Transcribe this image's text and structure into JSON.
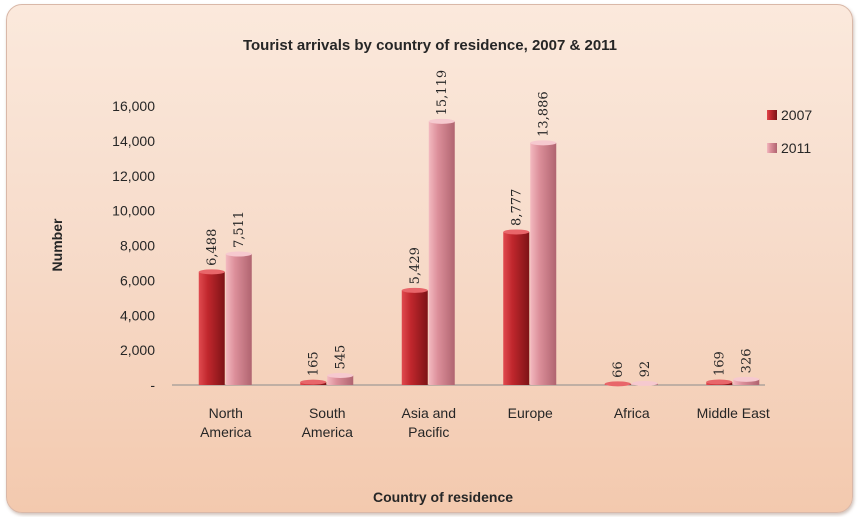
{
  "chart_data": {
    "type": "bar",
    "title": "Tourist arrivals by country of residence, 2007 & 2011",
    "xlabel": "Country of residence",
    "ylabel": "Number",
    "ylim": [
      0,
      16000
    ],
    "yticks": [
      "-",
      "2,000",
      "4,000",
      "6,000",
      "8,000",
      "10,000",
      "12,000",
      "14,000",
      "16,000"
    ],
    "categories": [
      [
        "North",
        "America"
      ],
      [
        "South",
        "America"
      ],
      [
        "Asia and",
        "Pacific"
      ],
      [
        "Europe"
      ],
      [
        "Africa"
      ],
      [
        "Middle East"
      ]
    ],
    "series": [
      {
        "name": "2007",
        "values": [
          6488,
          165,
          5429,
          8777,
          66,
          169
        ],
        "labels": [
          "6,488",
          "165",
          "5,429",
          "8,777",
          "66",
          "169"
        ],
        "color": "#c0272d"
      },
      {
        "name": "2011",
        "values": [
          7511,
          545,
          15119,
          13886,
          92,
          326
        ],
        "labels": [
          "7,511",
          "545",
          "15,119",
          "13,886",
          "92",
          "326"
        ],
        "color": "#dc8f9a"
      }
    ],
    "legend": "right",
    "grid": false
  }
}
